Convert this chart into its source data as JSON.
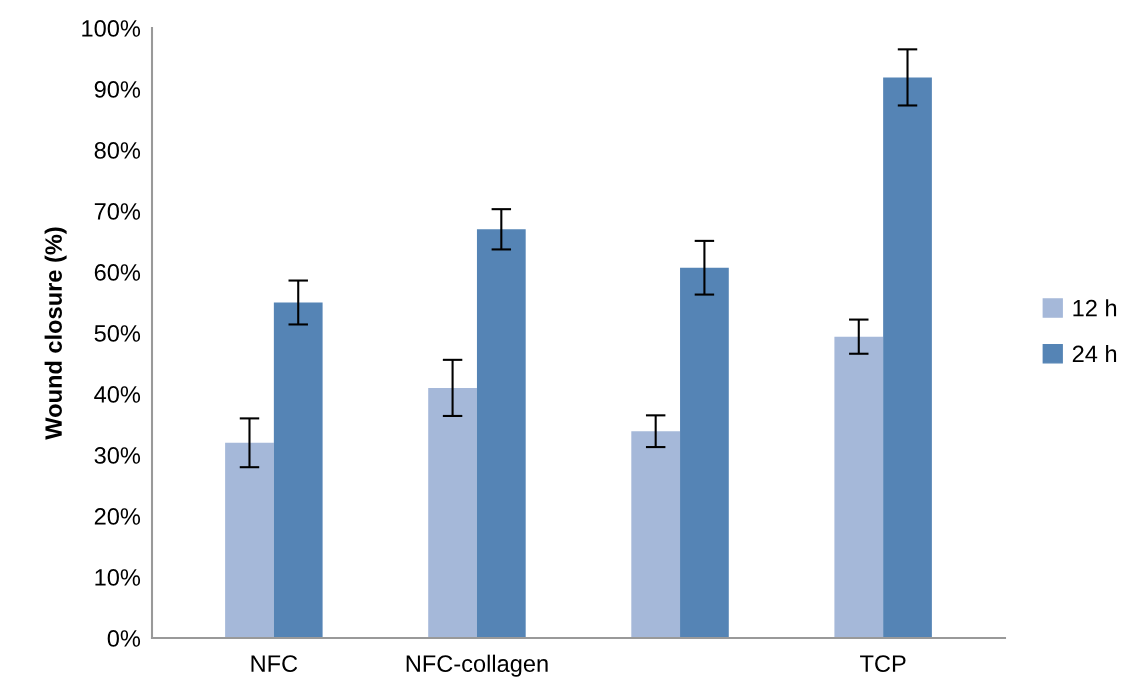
{
  "chart_data": {
    "type": "bar",
    "ylabel": "Wound closure (%)",
    "categories": [
      "NFC",
      "NFC-collagen",
      null,
      "TCP"
    ],
    "series": [
      {
        "name": "12 h",
        "color": "#a5b8d9",
        "values": [
          32.0,
          41.0,
          33.9,
          49.4
        ],
        "errors": [
          4.0,
          4.6,
          2.6,
          2.8
        ]
      },
      {
        "name": "24 h",
        "color": "#5584b5",
        "values": [
          55.0,
          67.0,
          60.7,
          91.9
        ],
        "errors": [
          3.6,
          3.3,
          4.4,
          4.6
        ]
      }
    ],
    "ylim": [
      0,
      100
    ],
    "yticks": [
      {
        "value": 0,
        "label": "0%"
      },
      {
        "value": 10,
        "label": "10%"
      },
      {
        "value": 20,
        "label": "20%"
      },
      {
        "value": 30,
        "label": "30%"
      },
      {
        "value": 40,
        "label": "40%"
      },
      {
        "value": 50,
        "label": "50%"
      },
      {
        "value": 60,
        "label": "60%"
      },
      {
        "value": 70,
        "label": "70%"
      },
      {
        "value": 80,
        "label": "80%"
      },
      {
        "value": 90,
        "label": "90%"
      },
      {
        "value": 100,
        "label": "100%"
      }
    ],
    "grid": false,
    "legend": "right"
  }
}
